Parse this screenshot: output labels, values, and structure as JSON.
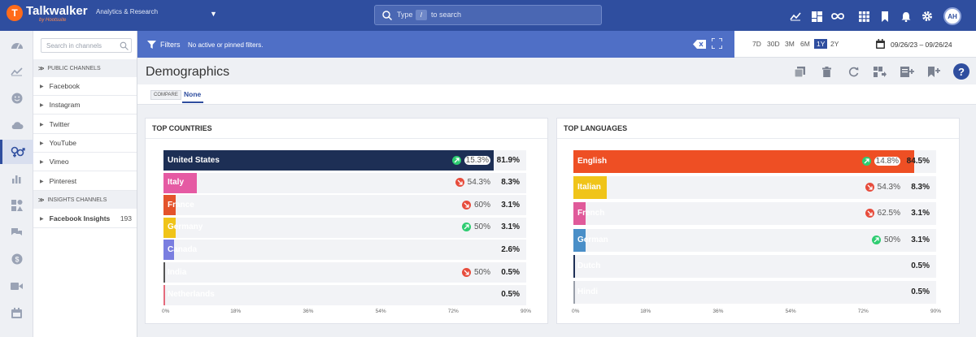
{
  "brand": {
    "name": "Talkwalker",
    "tagline": "by Hootsuite",
    "mark": "T"
  },
  "project": "Analytics & Research",
  "search": {
    "prefix": "Type",
    "key": "/",
    "suffix": "to search"
  },
  "user_initials": "AH",
  "channels": {
    "search_placeholder": "Search in channels",
    "sections": [
      {
        "label": "PUBLIC CHANNELS"
      },
      {
        "label": "INSIGHTS CHANNELS"
      }
    ],
    "items": [
      {
        "name": "Facebook"
      },
      {
        "name": "Instagram"
      },
      {
        "name": "Twitter"
      },
      {
        "name": "YouTube"
      },
      {
        "name": "Vimeo"
      },
      {
        "name": "Pinterest"
      }
    ],
    "insights_items": [
      {
        "name": "Facebook Insights",
        "count": "193"
      }
    ]
  },
  "filters": {
    "label": "Filters",
    "text": "No active or pinned filters."
  },
  "ranges": [
    "7D",
    "30D",
    "3M",
    "6M",
    "1Y",
    "2Y"
  ],
  "selected_range": "1Y",
  "date_range": "09/26/23 – 09/26/24",
  "page_title": "Demographics",
  "compare": {
    "label": "COMPARE",
    "value": "None"
  },
  "axis_ticks": [
    "0%",
    "18%",
    "36%",
    "54%",
    "72%",
    "90%"
  ],
  "colors": {
    "primary": "#2f4e9f",
    "filterbar": "#4f6fc6",
    "up": "#2ecc71",
    "down": "#e74c3c"
  },
  "chart_data": [
    {
      "type": "bar",
      "title": "TOP COUNTRIES",
      "xlim": [
        0,
        90
      ],
      "rows": [
        {
          "label": "United States",
          "value": 81.9,
          "pct": "81.9%",
          "change": "15.3%",
          "dir": "up",
          "color": "#1d2f55"
        },
        {
          "label": "Italy",
          "value": 8.3,
          "pct": "8.3%",
          "change": "54.3%",
          "dir": "down",
          "color": "#e55aa3"
        },
        {
          "label": "France",
          "value": 3.1,
          "pct": "3.1%",
          "change": "60%",
          "dir": "down",
          "color": "#e4532b"
        },
        {
          "label": "Germany",
          "value": 3.1,
          "pct": "3.1%",
          "change": "50%",
          "dir": "up",
          "color": "#f0c419"
        },
        {
          "label": "Canada",
          "value": 2.6,
          "pct": "2.6%",
          "change": "",
          "dir": "",
          "color": "#7a7ee0"
        },
        {
          "label": "India",
          "value": 0.5,
          "pct": "0.5%",
          "change": "50%",
          "dir": "down",
          "color": "#555555"
        },
        {
          "label": "Netherlands",
          "value": 0.5,
          "pct": "0.5%",
          "change": "",
          "dir": "",
          "color": "#e56b7c"
        }
      ]
    },
    {
      "type": "bar",
      "title": "TOP LANGUAGES",
      "xlim": [
        0,
        90
      ],
      "rows": [
        {
          "label": "English",
          "value": 84.5,
          "pct": "84.5%",
          "change": "14.8%",
          "dir": "up",
          "color": "#ee4f24"
        },
        {
          "label": "Italian",
          "value": 8.3,
          "pct": "8.3%",
          "change": "54.3%",
          "dir": "down",
          "color": "#f0c419"
        },
        {
          "label": "French",
          "value": 3.1,
          "pct": "3.1%",
          "change": "62.5%",
          "dir": "down",
          "color": "#e05a9a"
        },
        {
          "label": "German",
          "value": 3.1,
          "pct": "3.1%",
          "change": "50%",
          "dir": "up",
          "color": "#4a8fc8"
        },
        {
          "label": "Dutch",
          "value": 0.5,
          "pct": "0.5%",
          "change": "",
          "dir": "",
          "color": "#1d2f55"
        },
        {
          "label": "Hindi",
          "value": 0.5,
          "pct": "0.5%",
          "change": "",
          "dir": "",
          "color": "#9aa0aa"
        }
      ]
    }
  ]
}
